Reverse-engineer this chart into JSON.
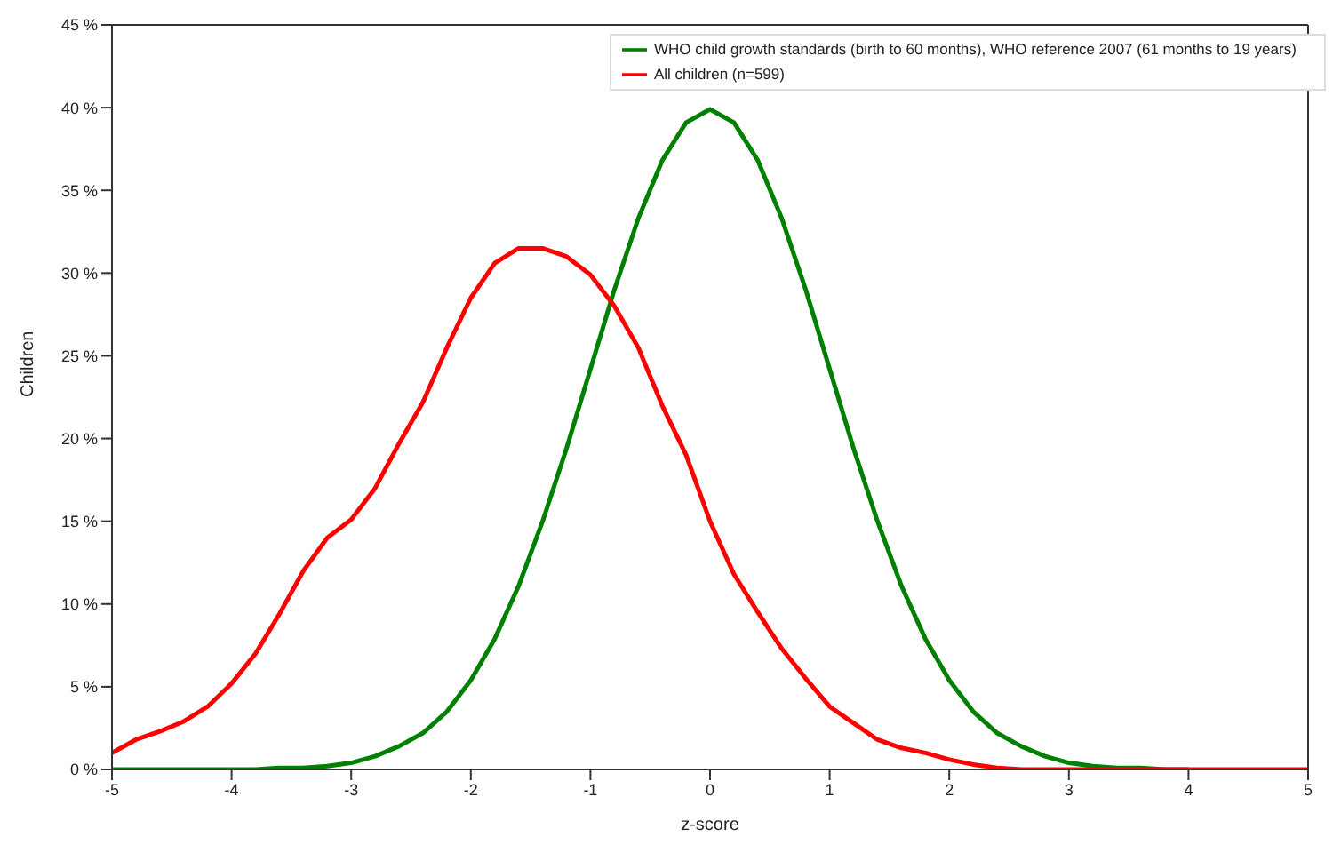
{
  "chart_data": {
    "type": "line",
    "xlabel": "z-score",
    "ylabel": "Children",
    "xlim": [
      -5,
      5
    ],
    "xticks": [
      -5,
      -4,
      -3,
      -2,
      -1,
      0,
      1,
      2,
      3,
      4,
      5
    ],
    "ylim": [
      0,
      45
    ],
    "yticks": [
      {
        "value": 0,
        "label": "0 %"
      },
      {
        "value": 5,
        "label": "5 %"
      },
      {
        "value": 10,
        "label": "10 %"
      },
      {
        "value": 15,
        "label": "15 %"
      },
      {
        "value": 20,
        "label": "20 %"
      },
      {
        "value": 25,
        "label": "25 %"
      },
      {
        "value": 30,
        "label": "30 %"
      },
      {
        "value": 35,
        "label": "35 %"
      },
      {
        "value": 40,
        "label": "40 %"
      },
      {
        "value": 45,
        "label": "45 %"
      }
    ],
    "legend": "top right",
    "marker": "none",
    "line_style": "solid",
    "series": [
      {
        "name": "WHO child growth standards (birth to 60 months), WHO reference 2007 (61 months to 19 years)",
        "color": "#008000",
        "x": [
          -5,
          -4.8,
          -4.6,
          -4.4,
          -4.2,
          -4,
          -3.8,
          -3.6,
          -3.4,
          -3.2,
          -3,
          -2.8,
          -2.6,
          -2.4,
          -2.2,
          -2,
          -1.8,
          -1.6,
          -1.4,
          -1.2,
          -1,
          -0.8,
          -0.6,
          -0.4,
          -0.2,
          0,
          0.2,
          0.4,
          0.6,
          0.8,
          1,
          1.2,
          1.4,
          1.6,
          1.8,
          2,
          2.2,
          2.4,
          2.6,
          2.8,
          3,
          3.2,
          3.4,
          3.6,
          3.8,
          4
        ],
        "values": [
          0,
          0,
          0,
          0,
          0,
          0,
          0,
          0.1,
          0.1,
          0.2,
          0.4,
          0.8,
          1.4,
          2.2,
          3.5,
          5.4,
          7.9,
          11.1,
          15,
          19.4,
          24.2,
          29,
          33.3,
          36.8,
          39.1,
          39.9,
          39.1,
          36.8,
          33.3,
          29,
          24.2,
          19.4,
          15,
          11.1,
          7.9,
          5.4,
          3.5,
          2.2,
          1.4,
          0.8,
          0.4,
          0.2,
          0.1,
          0.1,
          0,
          0
        ]
      },
      {
        "name": "All children (n=599)",
        "color": "#ff0000",
        "x": [
          -5,
          -4.8,
          -4.6,
          -4.4,
          -4.2,
          -4,
          -3.8,
          -3.6,
          -3.4,
          -3.2,
          -3,
          -2.8,
          -2.6,
          -2.4,
          -2.2,
          -2,
          -1.8,
          -1.6,
          -1.4,
          -1.2,
          -1,
          -0.8,
          -0.6,
          -0.4,
          -0.2,
          0,
          0.2,
          0.4,
          0.6,
          0.8,
          1,
          1.2,
          1.4,
          1.6,
          1.8,
          2,
          2.2,
          2.4,
          2.6,
          2.8,
          3,
          4,
          5
        ],
        "values": [
          1,
          1.8,
          2.3,
          2.9,
          3.8,
          5.2,
          7,
          9.4,
          12,
          14,
          15.1,
          17,
          19.7,
          22.2,
          25.5,
          28.5,
          30.6,
          31.5,
          31.5,
          31,
          29.9,
          28,
          25.5,
          22,
          19,
          15,
          11.8,
          9.5,
          7.3,
          5.5,
          3.8,
          2.8,
          1.8,
          1.3,
          1,
          0.6,
          0.3,
          0.1,
          0,
          0,
          0,
          0,
          0
        ]
      }
    ]
  }
}
